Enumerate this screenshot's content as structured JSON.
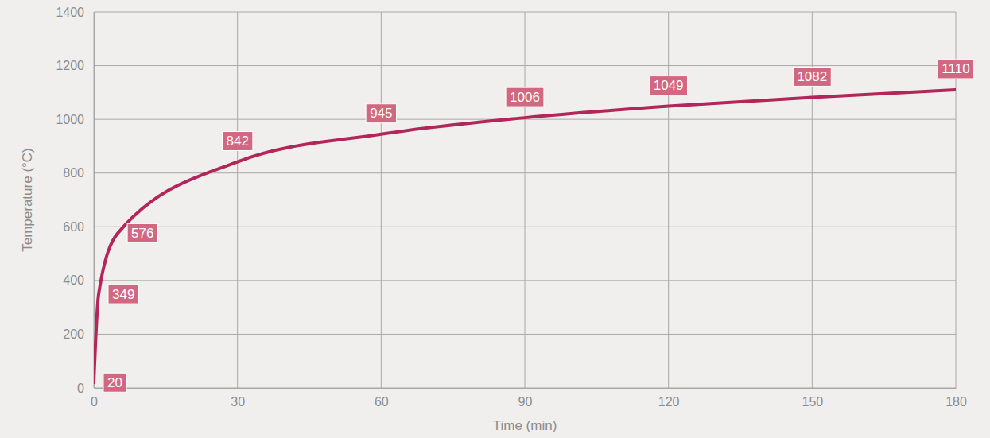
{
  "chart_data": {
    "type": "line",
    "x_label": "Time (min)",
    "y_label": "Temperature (°C)",
    "x": [
      0,
      1,
      5,
      30,
      60,
      90,
      120,
      150,
      180
    ],
    "values": [
      20,
      349,
      576,
      842,
      945,
      1006,
      1049,
      1082,
      1110
    ],
    "color": "#b3265a",
    "xlim": [
      0,
      180
    ],
    "xticks": [
      0,
      30,
      60,
      90,
      120,
      150,
      180
    ],
    "ylim": [
      0,
      1400
    ],
    "yticks": [
      0,
      200,
      400,
      600,
      800,
      1000,
      1200,
      1400
    ],
    "grid": true,
    "data_labels": true
  }
}
